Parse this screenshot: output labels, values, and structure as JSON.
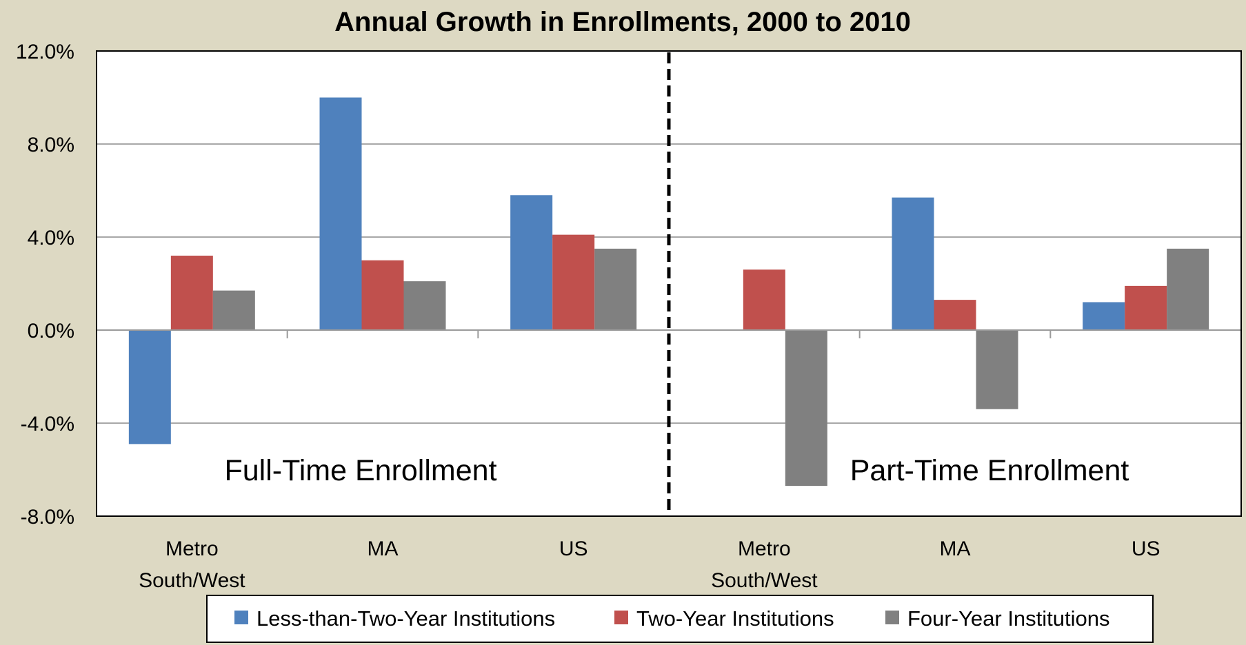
{
  "chart_data": {
    "type": "bar",
    "title": "Annual Growth in Enrollments, 2000 to 2010",
    "xlabel": "",
    "ylabel": "",
    "ylim": [
      -8,
      12
    ],
    "yticks": [
      12,
      8,
      4,
      0,
      -4,
      -8
    ],
    "ytick_labels": [
      "12.0%",
      "8.0%",
      "4.0%",
      "0.0%",
      "-4.0%",
      "-8.0%"
    ],
    "grid": true,
    "legend": "bottom",
    "categories": [
      [
        "Metro",
        "South/West"
      ],
      [
        "MA"
      ],
      [
        "US"
      ],
      [
        "Metro",
        "South/West"
      ],
      [
        "MA"
      ],
      [
        "US"
      ]
    ],
    "panel_labels": [
      "Full-Time Enrollment",
      "Part-Time Enrollment"
    ],
    "series": [
      {
        "name": "Less-than-Two-Year Institutions",
        "color": "#4f81bd",
        "values": [
          -4.9,
          10.0,
          5.8,
          0.0,
          5.7,
          1.2
        ]
      },
      {
        "name": "Two-Year Institutions",
        "color": "#c0504d",
        "values": [
          3.2,
          3.0,
          4.1,
          2.6,
          1.3,
          1.9
        ]
      },
      {
        "name": "Four-Year Institutions",
        "color": "#808080",
        "values": [
          1.7,
          2.1,
          3.5,
          -6.7,
          -3.4,
          3.5
        ]
      }
    ]
  }
}
